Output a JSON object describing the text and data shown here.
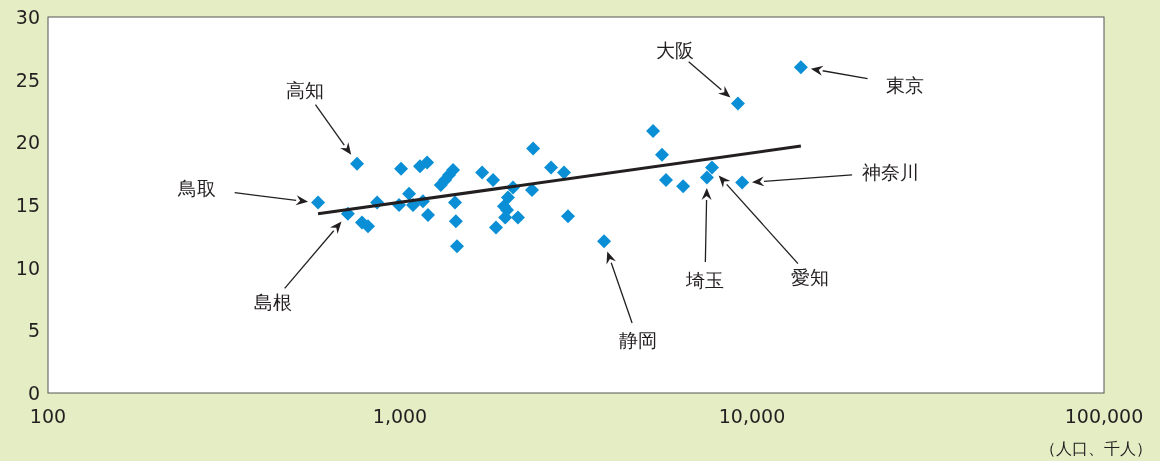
{
  "chart_data": {
    "type": "scatter",
    "xlabel": "（人口、千人）",
    "log": "x",
    "xlim": [
      100,
      100000
    ],
    "xticks": [
      {
        "value": 100,
        "label": "100"
      },
      {
        "value": 1000,
        "label": "1,000"
      },
      {
        "value": 10000,
        "label": "10,000"
      },
      {
        "value": 100000,
        "label": "100,000"
      }
    ],
    "ylim": [
      0,
      30
    ],
    "yticks": [
      0,
      5,
      10,
      15,
      20,
      25,
      30
    ],
    "grid": false,
    "series": [
      {
        "type": "scatter",
        "marker": "diamond",
        "color": "#0a8fd6",
        "x": [
          585,
          711,
          755,
          780,
          811,
          861,
          1007,
          994,
          1061,
          1089,
          1140,
          1194,
          1162,
          1201,
          1306,
          1343,
          1378,
          1415,
          1433,
          1441,
          1452,
          1711,
          1838,
          1874,
          2094,
          2026,
          1974,
          2014,
          1990,
          2163,
          2389,
          2371,
          2686,
          2924,
          3001,
          3800,
          5236,
          5551,
          5698,
          6373,
          7447,
          7697,
          9120,
          9375,
          13770
        ],
        "values": [
          15.2,
          14.3,
          18.3,
          13.6,
          13.3,
          15.2,
          17.9,
          15.0,
          15.9,
          15.0,
          18.1,
          18.4,
          15.3,
          14.2,
          16.6,
          17.0,
          17.4,
          17.8,
          15.2,
          13.7,
          11.7,
          17.6,
          17.0,
          13.2,
          16.4,
          15.6,
          14.9,
          14.6,
          14.0,
          14.0,
          19.5,
          16.2,
          18.0,
          17.6,
          14.1,
          12.1,
          20.9,
          19.0,
          17.0,
          16.5,
          17.2,
          18.0,
          23.1,
          16.8,
          26.0
        ]
      },
      {
        "type": "line",
        "color": "#231f20",
        "x": [
          585,
          13770
        ],
        "values": [
          14.3,
          19.7
        ]
      }
    ],
    "annotations": [
      "鳥取",
      "高知",
      "島根",
      "大阪",
      "東京",
      "神奈川",
      "静岡",
      "埼玉",
      "愛知"
    ]
  }
}
